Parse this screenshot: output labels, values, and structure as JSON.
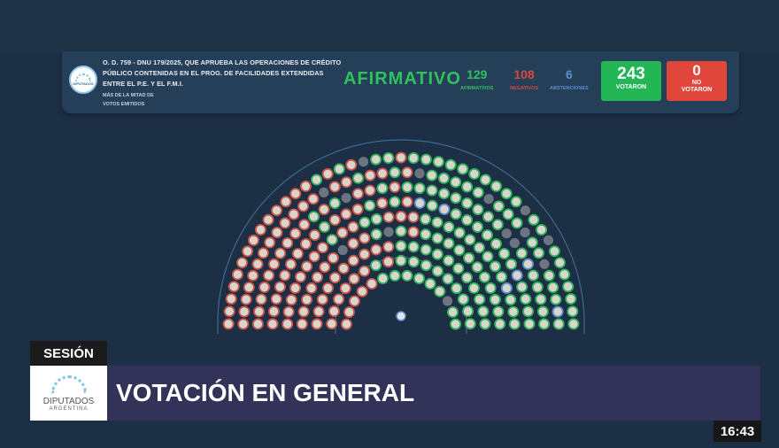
{
  "header": {
    "logo_text": "DIPUTADOS",
    "title": "O. D. 759 - DNU 179/2025, QUE APRUEBA LAS OPERACIONES DE CRÉDITO PÚBLICO CONTENIDAS EN EL PROG. DE FACILIDADES EXTENDIDAS ENTRE EL P.E. Y EL F.M.I.",
    "majority_line1": "MÁS DE LA MITAD DE",
    "majority_line2": "VOTOS EMITIDOS",
    "result": "AFIRMATIVO"
  },
  "counts": {
    "afirmativos": "129",
    "afirmativos_label": "AFIRMATIVOS",
    "negativos": "108",
    "negativos_label": "NEGATIVOS",
    "abstenciones": "6",
    "abstenciones_label": "ABSTENCIONES",
    "votaron": "243",
    "votaron_label": "VOTARON",
    "no_votaron": "0",
    "no_votaron_label1": "NO",
    "no_votaron_label2": "VOTARON"
  },
  "colors": {
    "affirmative": "#2fb35a",
    "negative": "#c9554a",
    "abstention": "#5b8fd0",
    "empty": "#6b7480",
    "no_vote_box": "#e0473a"
  },
  "footer": {
    "session_label": "SESIÓN",
    "logo_line1": "DIPUTADOS",
    "logo_line2": "ARGENTINA",
    "banner": "VOTACIÓN EN GENERAL",
    "time": "16:43"
  }
}
